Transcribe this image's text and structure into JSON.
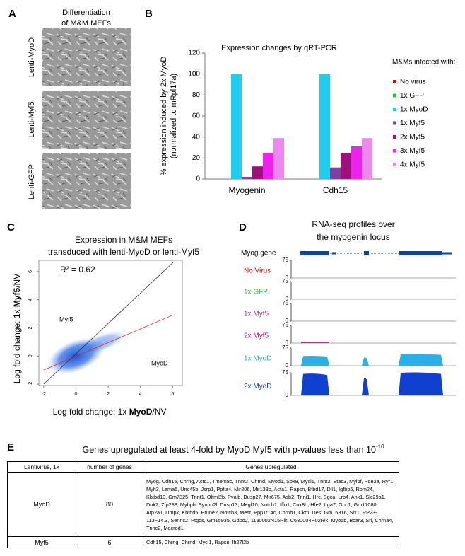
{
  "panel_a": {
    "letter": "A",
    "title": [
      "Differentiation",
      "of M&M MEFs"
    ],
    "rows": [
      "Lenti-MyoD",
      "Lenti-Myf5",
      "Lenti-GFP"
    ]
  },
  "chart_data": {
    "type": "bar",
    "letter": "B",
    "title": "Expression changes by qRT-PCR",
    "y_label": [
      "% expression induced by 2x MyoD",
      "(normalized to mRpl17a)"
    ],
    "legend_title": "M&Ms infected with:",
    "legend": "right",
    "categories": [
      "Myogenin",
      "Cdh15"
    ],
    "series": [
      {
        "name": "No virus",
        "color": "#e00000",
        "values": [
          0,
          0
        ]
      },
      {
        "name": "1x GFP",
        "color": "#22cc22",
        "values": [
          0,
          0
        ]
      },
      {
        "name": "1x MyoD",
        "color": "#22ccee",
        "values": [
          100,
          100
        ]
      },
      {
        "name": "1x Myf5",
        "color": "#8040a0",
        "values": [
          2,
          11
        ]
      },
      {
        "name": "2x Myf5",
        "color": "#a0107a",
        "values": [
          12,
          25
        ]
      },
      {
        "name": "3x Myf5",
        "color": "#ee22ee",
        "values": [
          25,
          31
        ]
      },
      {
        "name": "4x Myf5",
        "color": "#ee88ee",
        "values": [
          39,
          39
        ]
      }
    ],
    "ylim": [
      0,
      120
    ],
    "yticks": [
      0,
      20,
      40,
      60,
      80,
      100,
      120
    ],
    "grid": false
  },
  "panel_c": {
    "letter": "C",
    "title": [
      "Expression in M&M MEFs",
      "transduced with lenti-MyoD or lenti-Myf5"
    ],
    "annotation": "R² = 0.62",
    "labels": [
      "Myf5",
      "MyoD"
    ],
    "x_label": [
      "Log fold change:  1x ",
      "MyoD",
      "/NV"
    ],
    "y_label": [
      "Log fold change:  1x ",
      "Myf5",
      "/NV"
    ],
    "xlim": [
      -2.3,
      6.6
    ],
    "ylim": [
      -2.1,
      6.8
    ],
    "xticks": [
      -2,
      0,
      2,
      4,
      6
    ],
    "yticks": [
      -2,
      0,
      2,
      4,
      6
    ]
  },
  "panel_d": {
    "letter": "D",
    "title": [
      "RNA-seq profiles over",
      "the myogenin locus"
    ],
    "gene": "Myog gene",
    "tracks": [
      {
        "name": "No Virus",
        "color": "#e00000",
        "yticks": [
          75,
          0
        ]
      },
      {
        "name": "1x GFP",
        "color": "#22cc22",
        "yticks": [
          75,
          0
        ]
      },
      {
        "name": "1x Myf5",
        "color": "#8040a0",
        "yticks": [
          75,
          0
        ]
      },
      {
        "name": "2x Myf5",
        "color": "#a0107a",
        "yticks": [
          75,
          0
        ]
      },
      {
        "name": "1x MyoD",
        "color": "#2ab0e8",
        "yticks": [
          75,
          0
        ]
      },
      {
        "name": "2x MyoD",
        "color": "#1040d0",
        "yticks": [
          75,
          0
        ]
      }
    ]
  },
  "panel_e": {
    "letter": "E",
    "title": "Genes upregulated at least 4-fold by MyoD Myf5 with p-values less than 10",
    "title_exponent": "-10",
    "table": {
      "header": [
        "Lentivirus, 1x",
        "number of genes",
        "Genes upregulated"
      ],
      "rows": [
        [
          "MyoD",
          80,
          "Myog, Cdh15, Chrng, Actc1, Tmem8c, Tnnt2, Chrnd, Myod1, Sox8, Mycl1, Tnnt3, Stac3, Mylpf, Pde2a, Ryr1, Myh3, Lama5, Unc45b, Jsrp1, Ppfia4, Mir206, Mir133b, Acta1, Rapsn, Btbd17, Dll1, Igfbp5, Rbm24, Kbtbd10, Gm7325, Tnnt1, Olfml2b, Pvalb, Dusp27, Mir675, Asb2, Tnni1, Hrc, Sgca, Lrp4, Ank1, Slc29a1, Dok7, Zfp238, Mybph, Synpo2l, Dusp13, Megf10, Notch1, Iffo1, Cox8b, Hfe2, Itga7, Gpc1, Gm17080, Atp2a1, Dmpk, Kbtbd5, Prune2, Notch3, Mest, Ppp1r14c, Chrnb1, Ckm, Des, Gm15816, Six1, RP23-113F14.3, Serinc2, Ptgds, Gm15935, Gdpd2, 1190002N15Rik, C630004H02Rik, Myo5b, Bcar3, Srl, Chrna4, Tnnc2, Macrod1"
        ],
        [
          "Myf5",
          6,
          "Cdh15, Chrng, Chrnd, Mycl1, Rapsn, Ifi27l2b"
        ]
      ]
    }
  }
}
